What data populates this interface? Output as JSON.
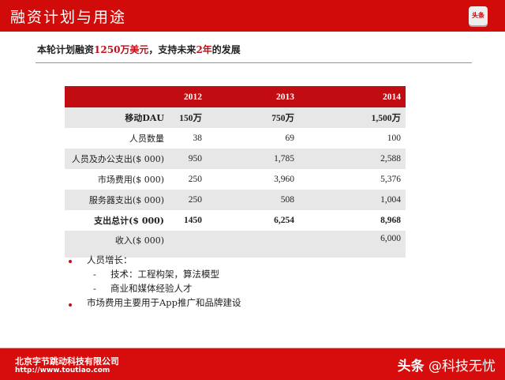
{
  "header": {
    "title": "融资计划与用途",
    "logo_text": "头条"
  },
  "subtitle": {
    "p1": "本轮计划融资",
    "amount": "1250万美元",
    "p2": "，支持未来",
    "years": "2年",
    "p3": "的发展"
  },
  "table": {
    "columns": [
      "",
      "2012",
      "2013",
      "2014"
    ],
    "rows": [
      {
        "label": "移动DAU",
        "values": [
          "150万",
          "750万",
          "1,500万"
        ]
      },
      {
        "label": "人员数量",
        "values": [
          "38",
          "69",
          "100"
        ]
      },
      {
        "label": "人员及办公支出($ 000)",
        "values": [
          "950",
          "1,785",
          "2,588"
        ]
      },
      {
        "label": "市场费用($ 000)",
        "values": [
          "250",
          "3,960",
          "5,376"
        ]
      },
      {
        "label": "服务器支出($ 000)",
        "values": [
          "250",
          "508",
          "1,004"
        ]
      },
      {
        "label": "支出总计($ 000)",
        "values": [
          "1450",
          "6,254",
          "8,968"
        ]
      },
      {
        "label": "收入($ 000)",
        "values": [
          "",
          "",
          "6,000"
        ]
      }
    ]
  },
  "bullets": {
    "b1": "人员增长：",
    "b1a": "技术：工程构架，算法模型",
    "b1b": "商业和媒体经验人才",
    "b2": "市场费用主要用于App推广和品牌建设",
    "dash": "-"
  },
  "footer": {
    "company": "北京字节跳动科技有限公司",
    "url": "http://www.toutiao.com",
    "wm_brand": "头条",
    "wm_account": "@科技无忧"
  },
  "colors": {
    "brand_red": "#d10a0a",
    "table_header": "#c10d12",
    "row_gray": "#e8e7e7"
  }
}
